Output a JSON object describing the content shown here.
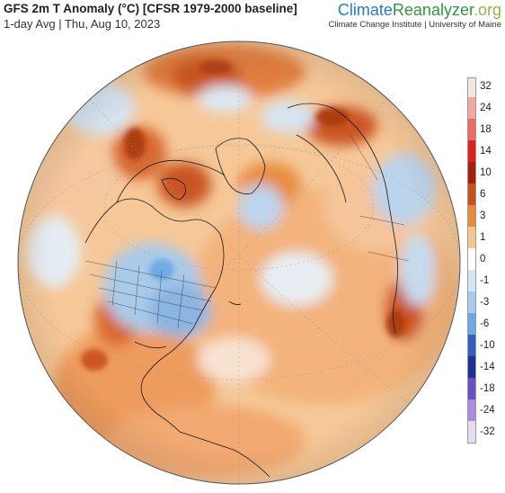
{
  "header": {
    "title": "GFS 2m T Anomaly (°C) [CFSR 1979-2000 baseline]",
    "subtitle": "1-day Avg | Thu, Aug 10, 2023"
  },
  "brand": {
    "logo_part1": "Climate",
    "logo_part2": "Reanalyzer",
    "logo_part3": ".org",
    "tagline": "Climate Change Institute | University of Maine",
    "color_blue": "#1f7fc4",
    "color_green": "#2a9a3c"
  },
  "legend": {
    "labels": [
      "32",
      "24",
      "18",
      "14",
      "10",
      "6",
      "3",
      "1",
      "0",
      "-1",
      "-3",
      "-6",
      "-10",
      "-14",
      "-18",
      "-24",
      "-32"
    ],
    "colors": [
      "#f7e6e0",
      "#f0a8a0",
      "#ef6a60",
      "#e0201a",
      "#a81e0c",
      "#c8501a",
      "#e88a3a",
      "#f6c690",
      "#ffffff",
      "#d4e6f6",
      "#a6cbee",
      "#6ca8e2",
      "#2f5fc0",
      "#1e2f98",
      "#6a4ec8",
      "#a88ce0",
      "#e6daf4"
    ]
  }
}
